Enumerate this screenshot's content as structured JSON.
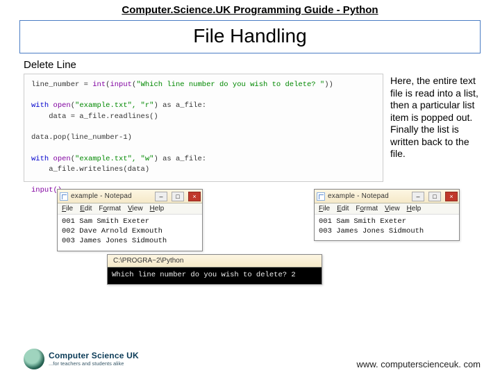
{
  "header": "Computer.Science.UK Programming Guide - Python",
  "title": "File Handling",
  "section_label": "Delete Line",
  "code": {
    "line1_pre": "line_number = ",
    "line1_fn1": "int",
    "line1_paren1": "(",
    "line1_fn2": "input",
    "line1_paren2": "(",
    "line1_str": "\"Which line number do you wish to delete? \"",
    "line1_end": "))",
    "line3_pre": "with ",
    "line3_fn": "open",
    "line3_paren": "(",
    "line3_str": "\"example.txt\", \"r\"",
    "line3_end": ") as a_file:",
    "line4": "    data = a_file.readlines()",
    "line6": "data.pop(line_number-1)",
    "line8_pre": "with ",
    "line8_fn": "open",
    "line8_paren": "(",
    "line8_str": "\"example.txt\", \"w\"",
    "line8_end": ") as a_file:",
    "line9": "    a_file.writelines(data)",
    "line11": "input()"
  },
  "explain": "Here, the entire text file is read into a list, then a particular list item is popped out. Finally the list is written back to the file.",
  "notepad1": {
    "title": "example - Notepad",
    "menu": {
      "file": "File",
      "edit": "Edit",
      "format": "Format",
      "view": "View",
      "help": "Help"
    },
    "lines": [
      "001 Sam Smith Exeter",
      "002 Dave Arnold Exmouth",
      "003 James Jones Sidmouth"
    ]
  },
  "notepad2": {
    "title": "example - Notepad",
    "menu": {
      "file": "File",
      "edit": "Edit",
      "format": "Format",
      "view": "View",
      "help": "Help"
    },
    "lines": [
      "001 Sam Smith Exeter",
      "003 James Jones Sidmouth"
    ]
  },
  "terminal": {
    "path": "C:\\PROGRA~2\\Python",
    "prompt": "Which line number do you wish to delete? 2"
  },
  "logo": {
    "big": "Computer Science UK",
    "small": "...for teachers and students alike"
  },
  "url": "www. computerscienceuk. com",
  "win": {
    "min": "–",
    "max": "□",
    "close": "×"
  }
}
